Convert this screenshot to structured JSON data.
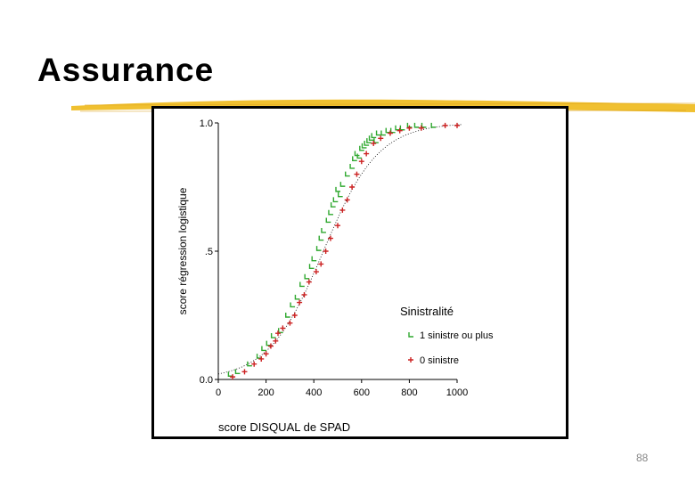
{
  "slide": {
    "title": "Assurance",
    "page_number": "88"
  },
  "colors": {
    "series_1": "#2fa82f",
    "series_0": "#cc2222",
    "underline": "#f0c030"
  },
  "chart_data": {
    "type": "scatter",
    "xlabel": "score DISQUAL de SPAD",
    "ylabel": "score régression logistique",
    "xlim": [
      0,
      1000
    ],
    "ylim": [
      0,
      1
    ],
    "x_ticks": [
      "0",
      "200",
      "400",
      "600",
      "800",
      "1000"
    ],
    "y_ticks": [
      "0.0",
      ".5",
      "1.0"
    ],
    "legend": {
      "title": "Sinistralité",
      "position": "right"
    },
    "series": [
      {
        "name": "1 sinistre ou plus",
        "marker": "L-shape",
        "points": [
          [
            50,
            0.02
          ],
          [
            80,
            0.03
          ],
          [
            130,
            0.06
          ],
          [
            170,
            0.09
          ],
          [
            190,
            0.12
          ],
          [
            210,
            0.14
          ],
          [
            230,
            0.17
          ],
          [
            260,
            0.19
          ],
          [
            290,
            0.25
          ],
          [
            310,
            0.29
          ],
          [
            330,
            0.32
          ],
          [
            350,
            0.37
          ],
          [
            370,
            0.4
          ],
          [
            390,
            0.44
          ],
          [
            400,
            0.47
          ],
          [
            420,
            0.51
          ],
          [
            430,
            0.55
          ],
          [
            440,
            0.58
          ],
          [
            460,
            0.62
          ],
          [
            470,
            0.65
          ],
          [
            480,
            0.68
          ],
          [
            490,
            0.7
          ],
          [
            500,
            0.74
          ],
          [
            510,
            0.72
          ],
          [
            520,
            0.76
          ],
          [
            540,
            0.8
          ],
          [
            560,
            0.83
          ],
          [
            570,
            0.86
          ],
          [
            580,
            0.88
          ],
          [
            590,
            0.87
          ],
          [
            600,
            0.9
          ],
          [
            610,
            0.91
          ],
          [
            620,
            0.92
          ],
          [
            630,
            0.93
          ],
          [
            640,
            0.94
          ],
          [
            650,
            0.95
          ],
          [
            660,
            0.93
          ],
          [
            670,
            0.96
          ],
          [
            690,
            0.96
          ],
          [
            710,
            0.97
          ],
          [
            730,
            0.97
          ],
          [
            750,
            0.98
          ],
          [
            770,
            0.98
          ],
          [
            800,
            0.99
          ],
          [
            830,
            0.99
          ],
          [
            860,
            0.99
          ],
          [
            900,
            0.99
          ]
        ]
      },
      {
        "name": "0 sinistre",
        "marker": "plus",
        "points": [
          [
            60,
            0.01
          ],
          [
            110,
            0.03
          ],
          [
            150,
            0.06
          ],
          [
            180,
            0.08
          ],
          [
            200,
            0.1
          ],
          [
            220,
            0.13
          ],
          [
            240,
            0.15
          ],
          [
            250,
            0.18
          ],
          [
            270,
            0.2
          ],
          [
            300,
            0.22
          ],
          [
            320,
            0.25
          ],
          [
            340,
            0.3
          ],
          [
            360,
            0.33
          ],
          [
            380,
            0.38
          ],
          [
            410,
            0.42
          ],
          [
            430,
            0.45
          ],
          [
            450,
            0.5
          ],
          [
            470,
            0.55
          ],
          [
            500,
            0.6
          ],
          [
            520,
            0.66
          ],
          [
            540,
            0.7
          ],
          [
            560,
            0.75
          ],
          [
            580,
            0.8
          ],
          [
            600,
            0.85
          ],
          [
            620,
            0.88
          ],
          [
            650,
            0.92
          ],
          [
            680,
            0.94
          ],
          [
            720,
            0.96
          ],
          [
            760,
            0.97
          ],
          [
            800,
            0.98
          ],
          [
            850,
            0.98
          ],
          [
            950,
            0.99
          ],
          [
            1000,
            0.99
          ]
        ]
      }
    ]
  }
}
